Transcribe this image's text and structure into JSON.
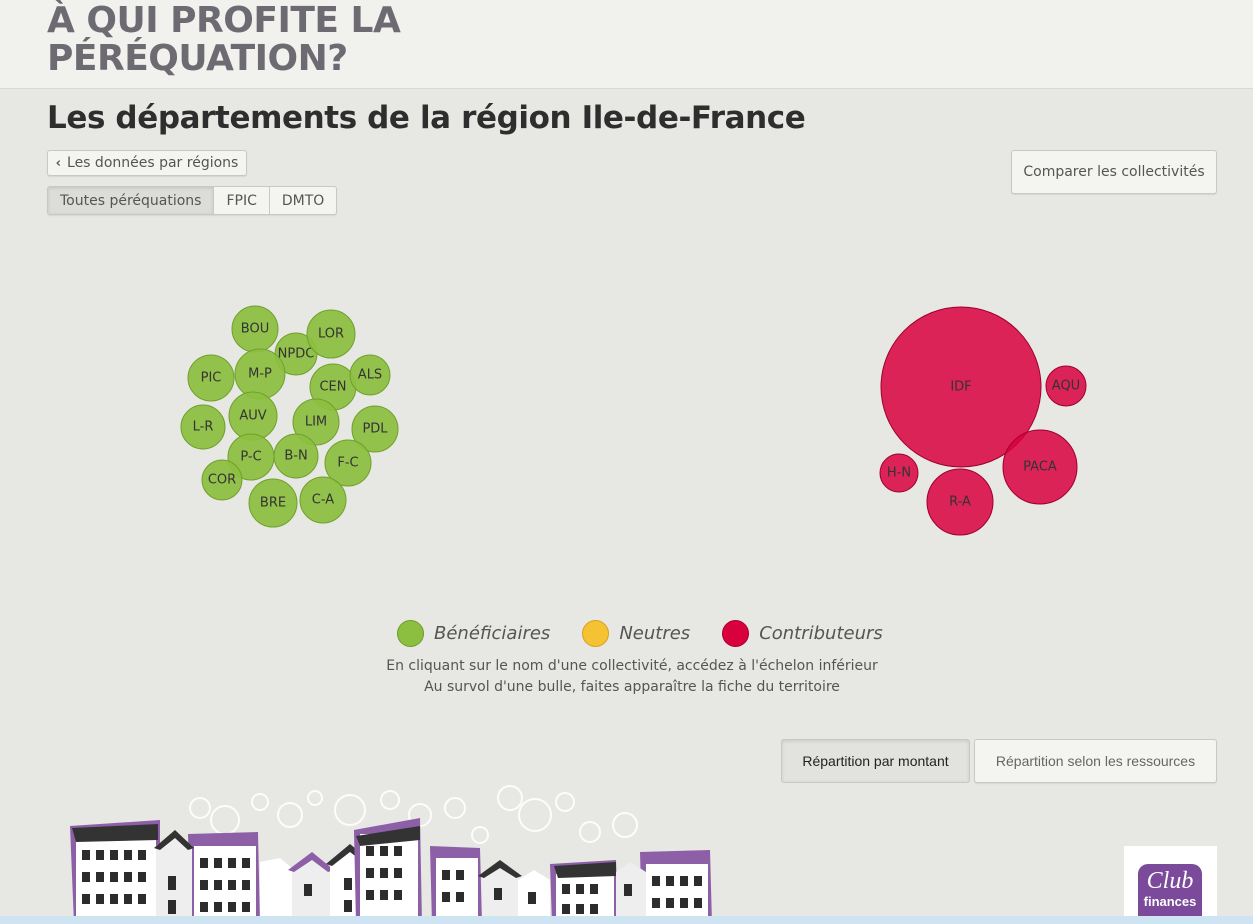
{
  "header": {
    "title_line1": "À QUI PROFITE LA",
    "title_line2": "PÉRÉQUATION?"
  },
  "page_title": "Les départements de la région Ile-de-France",
  "back_button": {
    "label": "Les données par régions"
  },
  "compare_button": {
    "label": "Comparer les collectivités"
  },
  "tabs": [
    {
      "label": "Toutes péréquations",
      "active": true
    },
    {
      "label": "FPIC",
      "active": false
    },
    {
      "label": "DMTO",
      "active": false
    }
  ],
  "colors": {
    "beneficiaire": "#8cbf3f",
    "neutre": "#f4c232",
    "contributeur": "#d9003e"
  },
  "bubbles": {
    "beneficiaires": [
      "BOU",
      "NPDC",
      "LOR",
      "PIC",
      "M-P",
      "CEN",
      "ALS",
      "L-R",
      "AUV",
      "LIM",
      "PDL",
      "P-C",
      "B-N",
      "F-C",
      "COR",
      "BRE",
      "C-A"
    ],
    "contributeurs": [
      "IDF",
      "AQU",
      "H-N",
      "PACA",
      "R-A"
    ]
  },
  "legend": [
    {
      "label": "Bénéficiaires",
      "color": "#8cbf3f"
    },
    {
      "label": "Neutres",
      "color": "#f4c232"
    },
    {
      "label": "Contributeurs",
      "color": "#d9003e"
    }
  ],
  "hints": {
    "line1": "En cliquant sur le nom d'une collectivité, accédez à l'échelon inférieur",
    "line2": "Au survol d'une bulle, faites apparaître la fiche du territoire"
  },
  "repartition": {
    "by_amount": "Répartition par montant",
    "by_resources": "Répartition selon les ressources"
  },
  "logo": {
    "club": "Club",
    "finances": "finances"
  }
}
